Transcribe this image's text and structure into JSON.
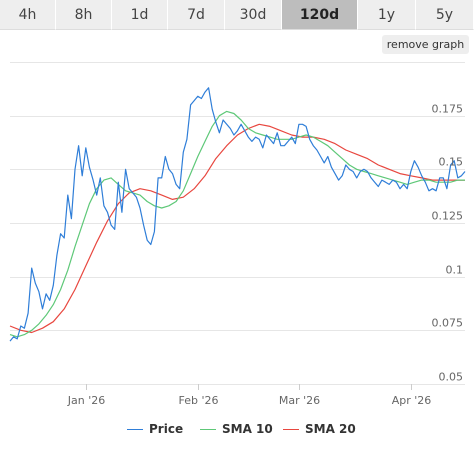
{
  "tabs": [
    {
      "label": "4h",
      "active": false
    },
    {
      "label": "8h",
      "active": false
    },
    {
      "label": "1d",
      "active": false
    },
    {
      "label": "7d",
      "active": false
    },
    {
      "label": "30d",
      "active": false
    },
    {
      "label": "120d",
      "active": true
    },
    {
      "label": "1y",
      "active": false
    },
    {
      "label": "5y",
      "active": false
    }
  ],
  "remove_graph_label": "remove graph",
  "chart_data": {
    "type": "line",
    "x_range": [
      "2025-12-11",
      "2026-04-16"
    ],
    "x_ticks": [
      {
        "date": "2026-01-01",
        "label": "Jan '26"
      },
      {
        "date": "2026-02-01",
        "label": "Feb '26"
      },
      {
        "date": "2026-03-01",
        "label": "Mar '26"
      },
      {
        "date": "2026-04-01",
        "label": "Apr '26"
      }
    ],
    "ylim": [
      0.05,
      0.2
    ],
    "y_ticks": [
      {
        "value": 0.05,
        "label": "0.05"
      },
      {
        "value": 0.075,
        "label": "0.075"
      },
      {
        "value": 0.1,
        "label": "0.1"
      },
      {
        "value": 0.125,
        "label": "0.125"
      },
      {
        "value": 0.15,
        "label": "0.15"
      },
      {
        "value": 0.175,
        "label": "0.175"
      }
    ],
    "grid": true,
    "legend_position": "bottom",
    "series": [
      {
        "name": "Price",
        "color": "#2f7ed8",
        "points": [
          [
            "2025-12-11",
            0.07
          ],
          [
            "2025-12-12",
            0.072
          ],
          [
            "2025-12-13",
            0.071
          ],
          [
            "2025-12-14",
            0.077
          ],
          [
            "2025-12-15",
            0.076
          ],
          [
            "2025-12-16",
            0.083
          ],
          [
            "2025-12-17",
            0.104
          ],
          [
            "2025-12-18",
            0.097
          ],
          [
            "2025-12-19",
            0.093
          ],
          [
            "2025-12-20",
            0.085
          ],
          [
            "2025-12-21",
            0.092
          ],
          [
            "2025-12-22",
            0.089
          ],
          [
            "2025-12-23",
            0.096
          ],
          [
            "2025-12-24",
            0.11
          ],
          [
            "2025-12-25",
            0.12
          ],
          [
            "2025-12-26",
            0.118
          ],
          [
            "2025-12-27",
            0.138
          ],
          [
            "2025-12-28",
            0.127
          ],
          [
            "2025-12-29",
            0.15
          ],
          [
            "2025-12-30",
            0.161
          ],
          [
            "2025-12-31",
            0.147
          ],
          [
            "2026-01-01",
            0.16
          ],
          [
            "2026-01-02",
            0.151
          ],
          [
            "2026-01-03",
            0.145
          ],
          [
            "2026-01-04",
            0.138
          ],
          [
            "2026-01-05",
            0.146
          ],
          [
            "2026-01-06",
            0.133
          ],
          [
            "2026-01-07",
            0.13
          ],
          [
            "2026-01-08",
            0.124
          ],
          [
            "2026-01-09",
            0.122
          ],
          [
            "2026-01-10",
            0.144
          ],
          [
            "2026-01-11",
            0.13
          ],
          [
            "2026-01-12",
            0.15
          ],
          [
            "2026-01-13",
            0.141
          ],
          [
            "2026-01-14",
            0.139
          ],
          [
            "2026-01-15",
            0.137
          ],
          [
            "2026-01-16",
            0.132
          ],
          [
            "2026-01-17",
            0.124
          ],
          [
            "2026-01-18",
            0.117
          ],
          [
            "2026-01-19",
            0.115
          ],
          [
            "2026-01-20",
            0.121
          ],
          [
            "2026-01-21",
            0.146
          ],
          [
            "2026-01-22",
            0.146
          ],
          [
            "2026-01-23",
            0.156
          ],
          [
            "2026-01-24",
            0.15
          ],
          [
            "2026-01-25",
            0.148
          ],
          [
            "2026-01-26",
            0.143
          ],
          [
            "2026-01-27",
            0.141
          ],
          [
            "2026-01-28",
            0.158
          ],
          [
            "2026-01-29",
            0.164
          ],
          [
            "2026-01-30",
            0.18
          ],
          [
            "2026-01-31",
            0.182
          ],
          [
            "2026-02-01",
            0.184
          ],
          [
            "2026-02-02",
            0.183
          ],
          [
            "2026-02-03",
            0.186
          ],
          [
            "2026-02-04",
            0.188
          ],
          [
            "2026-02-05",
            0.178
          ],
          [
            "2026-02-06",
            0.172
          ],
          [
            "2026-02-07",
            0.167
          ],
          [
            "2026-02-08",
            0.173
          ],
          [
            "2026-02-09",
            0.171
          ],
          [
            "2026-02-10",
            0.169
          ],
          [
            "2026-02-11",
            0.166
          ],
          [
            "2026-02-12",
            0.168
          ],
          [
            "2026-02-13",
            0.171
          ],
          [
            "2026-02-14",
            0.168
          ],
          [
            "2026-02-15",
            0.165
          ],
          [
            "2026-02-16",
            0.163
          ],
          [
            "2026-02-17",
            0.165
          ],
          [
            "2026-02-18",
            0.164
          ],
          [
            "2026-02-19",
            0.16
          ],
          [
            "2026-02-20",
            0.166
          ],
          [
            "2026-02-21",
            0.164
          ],
          [
            "2026-02-22",
            0.162
          ],
          [
            "2026-02-23",
            0.167
          ],
          [
            "2026-02-24",
            0.161
          ],
          [
            "2026-02-25",
            0.161
          ],
          [
            "2026-02-26",
            0.163
          ],
          [
            "2026-02-27",
            0.165
          ],
          [
            "2026-02-28",
            0.162
          ],
          [
            "2026-03-01",
            0.171
          ],
          [
            "2026-03-02",
            0.171
          ],
          [
            "2026-03-03",
            0.17
          ],
          [
            "2026-03-04",
            0.164
          ],
          [
            "2026-03-05",
            0.161
          ],
          [
            "2026-03-06",
            0.159
          ],
          [
            "2026-03-07",
            0.156
          ],
          [
            "2026-03-08",
            0.153
          ],
          [
            "2026-03-09",
            0.156
          ],
          [
            "2026-03-10",
            0.151
          ],
          [
            "2026-03-11",
            0.148
          ],
          [
            "2026-03-12",
            0.145
          ],
          [
            "2026-03-13",
            0.147
          ],
          [
            "2026-03-14",
            0.152
          ],
          [
            "2026-03-15",
            0.15
          ],
          [
            "2026-03-16",
            0.149
          ],
          [
            "2026-03-17",
            0.146
          ],
          [
            "2026-03-18",
            0.149
          ],
          [
            "2026-03-19",
            0.15
          ],
          [
            "2026-03-20",
            0.149
          ],
          [
            "2026-03-21",
            0.146
          ],
          [
            "2026-03-22",
            0.144
          ],
          [
            "2026-03-23",
            0.142
          ],
          [
            "2026-03-24",
            0.145
          ],
          [
            "2026-03-25",
            0.144
          ],
          [
            "2026-03-26",
            0.143
          ],
          [
            "2026-03-27",
            0.145
          ],
          [
            "2026-03-28",
            0.144
          ],
          [
            "2026-03-29",
            0.141
          ],
          [
            "2026-03-30",
            0.143
          ],
          [
            "2026-03-31",
            0.141
          ],
          [
            "2026-04-01",
            0.149
          ],
          [
            "2026-04-02",
            0.154
          ],
          [
            "2026-04-03",
            0.151
          ],
          [
            "2026-04-04",
            0.147
          ],
          [
            "2026-04-05",
            0.144
          ],
          [
            "2026-04-06",
            0.14
          ],
          [
            "2026-04-07",
            0.141
          ],
          [
            "2026-04-08",
            0.14
          ],
          [
            "2026-04-09",
            0.146
          ],
          [
            "2026-04-10",
            0.146
          ],
          [
            "2026-04-11",
            0.141
          ],
          [
            "2026-04-12",
            0.152
          ],
          [
            "2026-04-13",
            0.154
          ],
          [
            "2026-04-14",
            0.146
          ],
          [
            "2026-04-15",
            0.147
          ],
          [
            "2026-04-16",
            0.149
          ]
        ]
      },
      {
        "name": "SMA 10",
        "color": "#5ec878",
        "points": [
          [
            "2025-12-11",
            0.073
          ],
          [
            "2025-12-13",
            0.072
          ],
          [
            "2025-12-15",
            0.073
          ],
          [
            "2025-12-17",
            0.075
          ],
          [
            "2025-12-19",
            0.078
          ],
          [
            "2025-12-21",
            0.082
          ],
          [
            "2025-12-23",
            0.087
          ],
          [
            "2025-12-25",
            0.094
          ],
          [
            "2025-12-27",
            0.103
          ],
          [
            "2025-12-29",
            0.114
          ],
          [
            "2025-12-31",
            0.124
          ],
          [
            "2026-01-02",
            0.134
          ],
          [
            "2026-01-04",
            0.141
          ],
          [
            "2026-01-06",
            0.145
          ],
          [
            "2026-01-08",
            0.146
          ],
          [
            "2026-01-10",
            0.143
          ],
          [
            "2026-01-12",
            0.14
          ],
          [
            "2026-01-14",
            0.139
          ],
          [
            "2026-01-16",
            0.138
          ],
          [
            "2026-01-18",
            0.135
          ],
          [
            "2026-01-20",
            0.133
          ],
          [
            "2026-01-22",
            0.132
          ],
          [
            "2026-01-24",
            0.133
          ],
          [
            "2026-01-26",
            0.135
          ],
          [
            "2026-01-28",
            0.14
          ],
          [
            "2026-01-30",
            0.148
          ],
          [
            "2026-02-01",
            0.156
          ],
          [
            "2026-02-03",
            0.163
          ],
          [
            "2026-02-05",
            0.17
          ],
          [
            "2026-02-07",
            0.175
          ],
          [
            "2026-02-09",
            0.177
          ],
          [
            "2026-02-11",
            0.176
          ],
          [
            "2026-02-13",
            0.173
          ],
          [
            "2026-02-15",
            0.169
          ],
          [
            "2026-02-17",
            0.167
          ],
          [
            "2026-02-19",
            0.166
          ],
          [
            "2026-02-21",
            0.165
          ],
          [
            "2026-02-23",
            0.164
          ],
          [
            "2026-02-25",
            0.164
          ],
          [
            "2026-02-27",
            0.164
          ],
          [
            "2026-03-01",
            0.165
          ],
          [
            "2026-03-03",
            0.166
          ],
          [
            "2026-03-05",
            0.165
          ],
          [
            "2026-03-07",
            0.163
          ],
          [
            "2026-03-09",
            0.161
          ],
          [
            "2026-03-11",
            0.158
          ],
          [
            "2026-03-13",
            0.155
          ],
          [
            "2026-03-15",
            0.152
          ],
          [
            "2026-03-17",
            0.15
          ],
          [
            "2026-03-19",
            0.149
          ],
          [
            "2026-03-21",
            0.148
          ],
          [
            "2026-03-23",
            0.147
          ],
          [
            "2026-03-25",
            0.146
          ],
          [
            "2026-03-27",
            0.145
          ],
          [
            "2026-03-29",
            0.144
          ],
          [
            "2026-03-31",
            0.143
          ],
          [
            "2026-04-02",
            0.144
          ],
          [
            "2026-04-04",
            0.145
          ],
          [
            "2026-04-06",
            0.145
          ],
          [
            "2026-04-08",
            0.144
          ],
          [
            "2026-04-10",
            0.144
          ],
          [
            "2026-04-12",
            0.144
          ],
          [
            "2026-04-14",
            0.145
          ],
          [
            "2026-04-16",
            0.145
          ]
        ]
      },
      {
        "name": "SMA 20",
        "color": "#e8473f",
        "points": [
          [
            "2025-12-11",
            0.077
          ],
          [
            "2025-12-14",
            0.075
          ],
          [
            "2025-12-17",
            0.074
          ],
          [
            "2025-12-20",
            0.076
          ],
          [
            "2025-12-23",
            0.079
          ],
          [
            "2025-12-26",
            0.085
          ],
          [
            "2025-12-29",
            0.094
          ],
          [
            "2026-01-01",
            0.105
          ],
          [
            "2026-01-04",
            0.116
          ],
          [
            "2026-01-07",
            0.126
          ],
          [
            "2026-01-10",
            0.134
          ],
          [
            "2026-01-13",
            0.139
          ],
          [
            "2026-01-16",
            0.141
          ],
          [
            "2026-01-19",
            0.14
          ],
          [
            "2026-01-22",
            0.138
          ],
          [
            "2026-01-25",
            0.136
          ],
          [
            "2026-01-28",
            0.137
          ],
          [
            "2026-01-31",
            0.141
          ],
          [
            "2026-02-03",
            0.147
          ],
          [
            "2026-02-06",
            0.155
          ],
          [
            "2026-02-09",
            0.161
          ],
          [
            "2026-02-12",
            0.166
          ],
          [
            "2026-02-15",
            0.169
          ],
          [
            "2026-02-18",
            0.171
          ],
          [
            "2026-02-21",
            0.17
          ],
          [
            "2026-02-24",
            0.168
          ],
          [
            "2026-02-27",
            0.166
          ],
          [
            "2026-03-02",
            0.165
          ],
          [
            "2026-03-05",
            0.165
          ],
          [
            "2026-03-08",
            0.164
          ],
          [
            "2026-03-11",
            0.162
          ],
          [
            "2026-03-14",
            0.159
          ],
          [
            "2026-03-17",
            0.157
          ],
          [
            "2026-03-20",
            0.155
          ],
          [
            "2026-03-23",
            0.152
          ],
          [
            "2026-03-26",
            0.15
          ],
          [
            "2026-03-29",
            0.148
          ],
          [
            "2026-04-01",
            0.147
          ],
          [
            "2026-04-04",
            0.146
          ],
          [
            "2026-04-07",
            0.145
          ],
          [
            "2026-04-10",
            0.145
          ],
          [
            "2026-04-13",
            0.145
          ],
          [
            "2026-04-16",
            0.145
          ]
        ]
      }
    ]
  }
}
